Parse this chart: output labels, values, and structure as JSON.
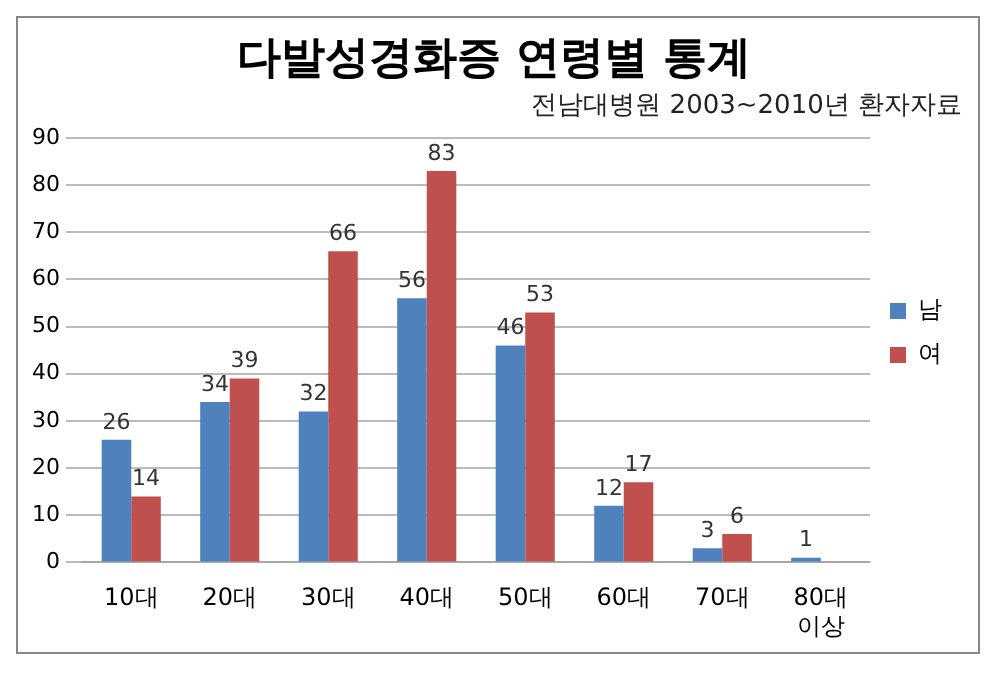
{
  "chart_data": {
    "type": "bar",
    "title": "다발성경화증 연령별 통계",
    "subtitle": "전남대병원 2003~2010년 환자자료",
    "categories": [
      "10대",
      "20대",
      "30대",
      "40대",
      "50대",
      "60대",
      "70대",
      "80대 이상"
    ],
    "series": [
      {
        "name": "남",
        "color": "#4f81bd",
        "values": [
          26,
          34,
          32,
          56,
          46,
          12,
          3,
          1
        ]
      },
      {
        "name": "여",
        "color": "#c0504d",
        "values": [
          14,
          39,
          66,
          83,
          53,
          17,
          6,
          null
        ]
      }
    ],
    "ylim": [
      0,
      90
    ],
    "yticks": [
      0,
      10,
      20,
      30,
      40,
      50,
      60,
      70,
      80,
      90
    ],
    "grid": "y",
    "legend": "right",
    "data_labels": true
  }
}
